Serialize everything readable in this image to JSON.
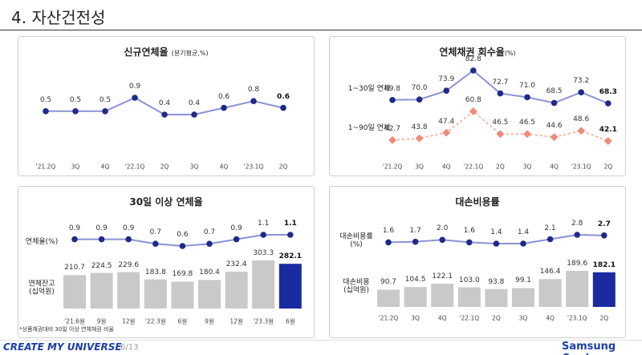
{
  "header": {
    "title": "4. 자산건전성"
  },
  "footer": {
    "slogan": "CREATE MY UNIVERSE",
    "page": "6/13",
    "brand": "Samsung Card"
  },
  "chart_data": [
    {
      "type": "line",
      "title": "신규연체율",
      "subtitle": "(분기평균,%)",
      "categories": [
        "'21.2Q",
        "3Q",
        "4Q",
        "'22.1Q",
        "2Q",
        "3Q",
        "4Q",
        "'23.1Q",
        "2Q"
      ],
      "series": [
        {
          "color": "#1f2a8a",
          "line_color": "#8c92d6",
          "marker": "circle",
          "values": [
            0.5,
            0.5,
            0.5,
            0.9,
            0.4,
            0.4,
            0.6,
            0.8,
            0.6
          ]
        }
      ]
    },
    {
      "type": "line",
      "title": "연체채권 회수율",
      "subtitle": "(%)",
      "categories": [
        "'21.2Q",
        "3Q",
        "4Q",
        "'22.1Q",
        "2Q",
        "3Q",
        "4Q",
        "'23.1Q",
        "2Q"
      ],
      "series": [
        {
          "name": "1~30일 연체",
          "color": "#1f2a8a",
          "line_color": "#8c92d6",
          "marker": "circle",
          "values": [
            69.8,
            70.0,
            73.9,
            82.8,
            72.7,
            71.0,
            68.5,
            73.2,
            68.3
          ],
          "value_labels": [
            "69.8",
            "70.0",
            "73.9",
            "82.8",
            "72.7",
            "71.0",
            "68.5",
            "73.2",
            "68.3"
          ]
        },
        {
          "name": "1~90일 연체",
          "color": "#f08a78",
          "line_color": "#f5b3a6",
          "marker": "diamond",
          "dashed": true,
          "values": [
            42.7,
            43.8,
            47.4,
            60.8,
            46.5,
            46.5,
            44.6,
            48.6,
            42.1
          ]
        }
      ]
    },
    {
      "type": "combo",
      "title": "30일 이상 연체율",
      "note": "*상품채권대비 30일 이상 연체채권 비율",
      "categories": [
        "'21.6월",
        "9월",
        "12월",
        "'22.3월",
        "6월",
        "9월",
        "12월",
        "'23.3월",
        "6월"
      ],
      "series": [
        {
          "name": "연체율(%)",
          "type": "line",
          "color": "#1f2a8a",
          "line_color": "#8c92d6",
          "marker": "circle",
          "values": [
            0.9,
            0.9,
            0.9,
            0.7,
            0.6,
            0.7,
            0.9,
            1.1,
            1.1
          ]
        },
        {
          "name": "연체잔고\n(십억원)",
          "type": "bar",
          "color": "#c9c9c9",
          "highlight_color": "#1a2aa0",
          "values": [
            210.7,
            224.5,
            229.6,
            183.8,
            169.8,
            180.4,
            232.4,
            303.3,
            282.1
          ]
        }
      ]
    },
    {
      "type": "combo",
      "title": "대손비용률",
      "categories": [
        "'21.2Q",
        "3Q",
        "4Q",
        "'22.1Q",
        "2Q",
        "3Q",
        "4Q",
        "'23.1Q",
        "2Q"
      ],
      "series": [
        {
          "name": "대손비용률\n(%)",
          "type": "line",
          "color": "#1f2a8a",
          "line_color": "#8c92d6",
          "marker": "circle",
          "values": [
            1.6,
            1.7,
            2.0,
            1.6,
            1.4,
            1.4,
            2.1,
            2.8,
            2.7
          ],
          "value_labels": [
            "1.6",
            "1.7",
            "2.0",
            "1.6",
            "1.4",
            "1.4",
            "2.1",
            "2.8",
            "2.7"
          ]
        },
        {
          "name": "대손비용\n(십억원)",
          "type": "bar",
          "color": "#c9c9c9",
          "highlight_color": "#1a2aa0",
          "values": [
            90.7,
            104.5,
            122.1,
            103.0,
            93.8,
            99.1,
            146.4,
            189.6,
            182.1
          ],
          "value_labels": [
            "90.7",
            "104.5",
            "122.1",
            "103.0",
            "93.8",
            "99.1",
            "146.4",
            "189.6",
            "182.1"
          ]
        }
      ]
    }
  ]
}
